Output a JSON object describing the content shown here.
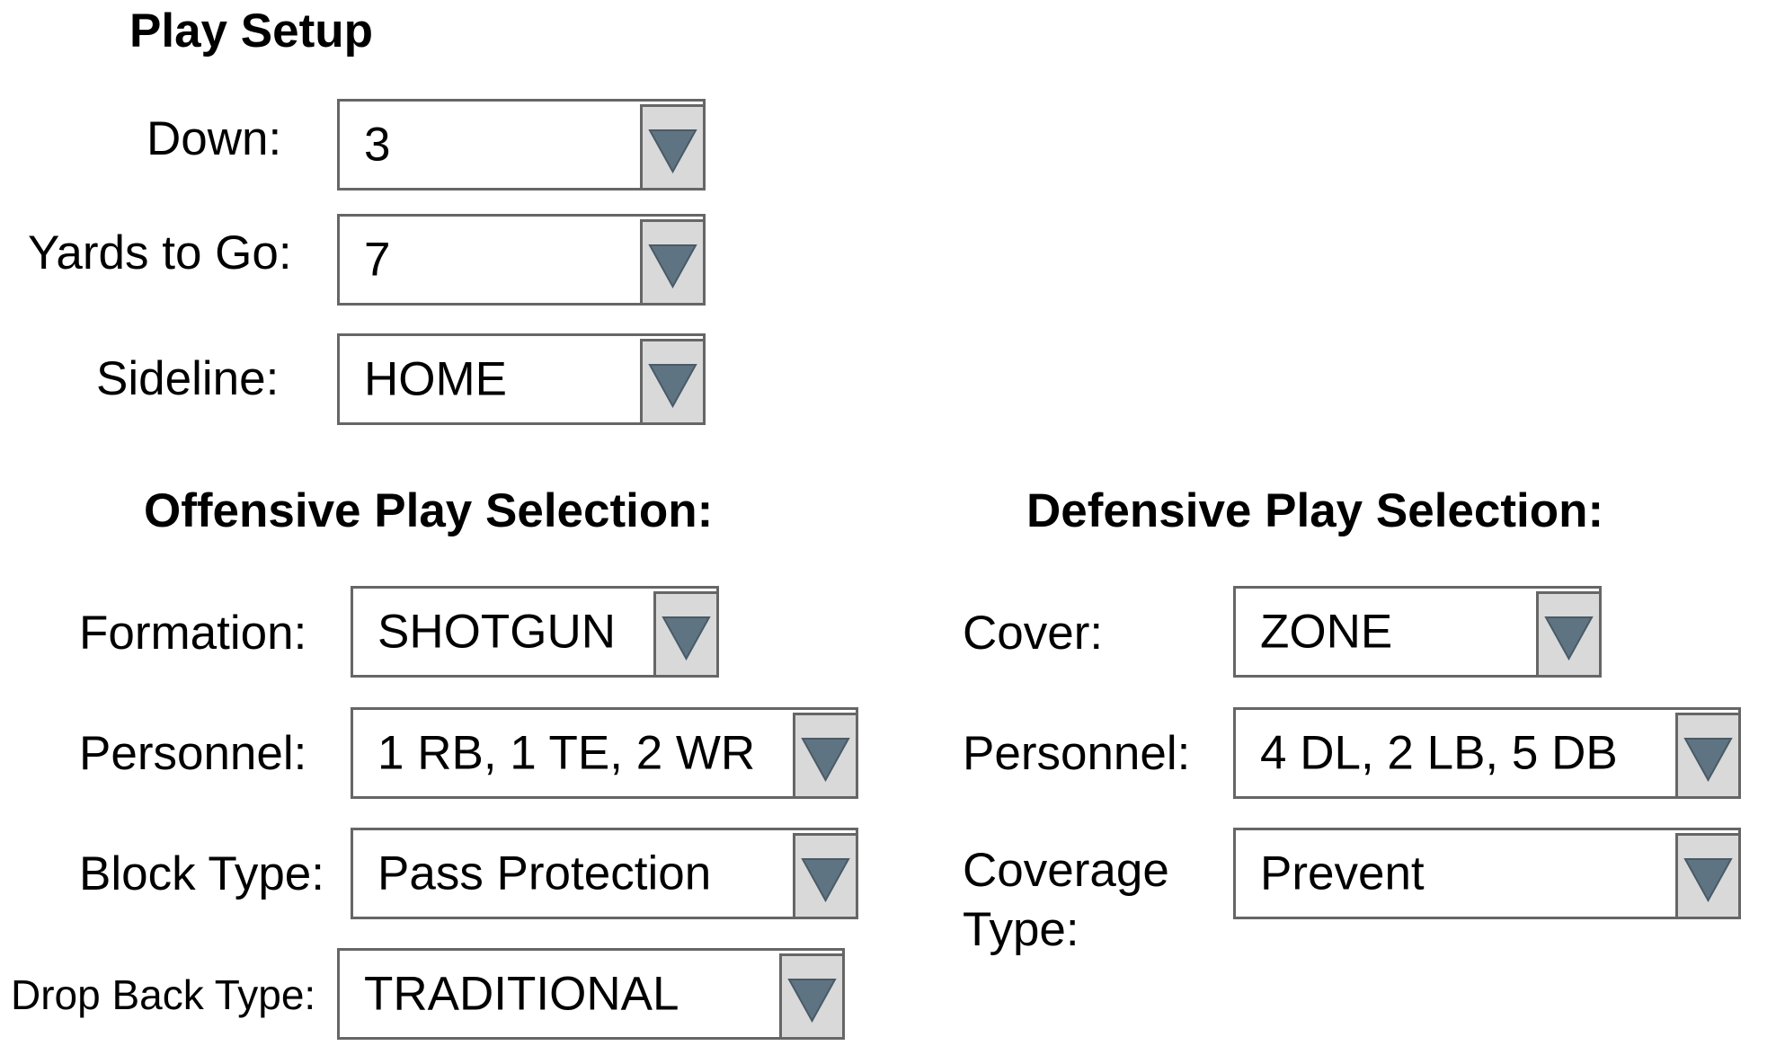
{
  "play_setup": {
    "title": "Play Setup",
    "down": {
      "label": "Down:",
      "value": "3"
    },
    "yards_to_go": {
      "label": "Yards to Go:",
      "value": "7"
    },
    "sideline": {
      "label": "Sideline:",
      "value": "HOME"
    }
  },
  "offense": {
    "title": "Offensive Play Selection:",
    "formation": {
      "label": "Formation:",
      "value": "SHOTGUN"
    },
    "personnel": {
      "label": "Personnel:",
      "value": "1 RB, 1 TE, 2 WR"
    },
    "block_type": {
      "label": "Block Type:",
      "value": "Pass Protection"
    },
    "drop_back_type": {
      "label": "Drop Back Type:",
      "value": "TRADITIONAL"
    }
  },
  "defense": {
    "title": "Defensive Play Selection:",
    "cover": {
      "label": "Cover:",
      "value": "ZONE"
    },
    "personnel": {
      "label": "Personnel:",
      "value": "4 DL, 2 LB, 5 DB"
    },
    "coverage_type": {
      "label": "Coverage Type:",
      "value": "Prevent"
    }
  },
  "icons": {
    "dropdown_arrow": "triangle-down-icon"
  },
  "colors": {
    "arrow": "#5f7482",
    "button_bg": "#d9d9d9",
    "border": "#666666"
  }
}
